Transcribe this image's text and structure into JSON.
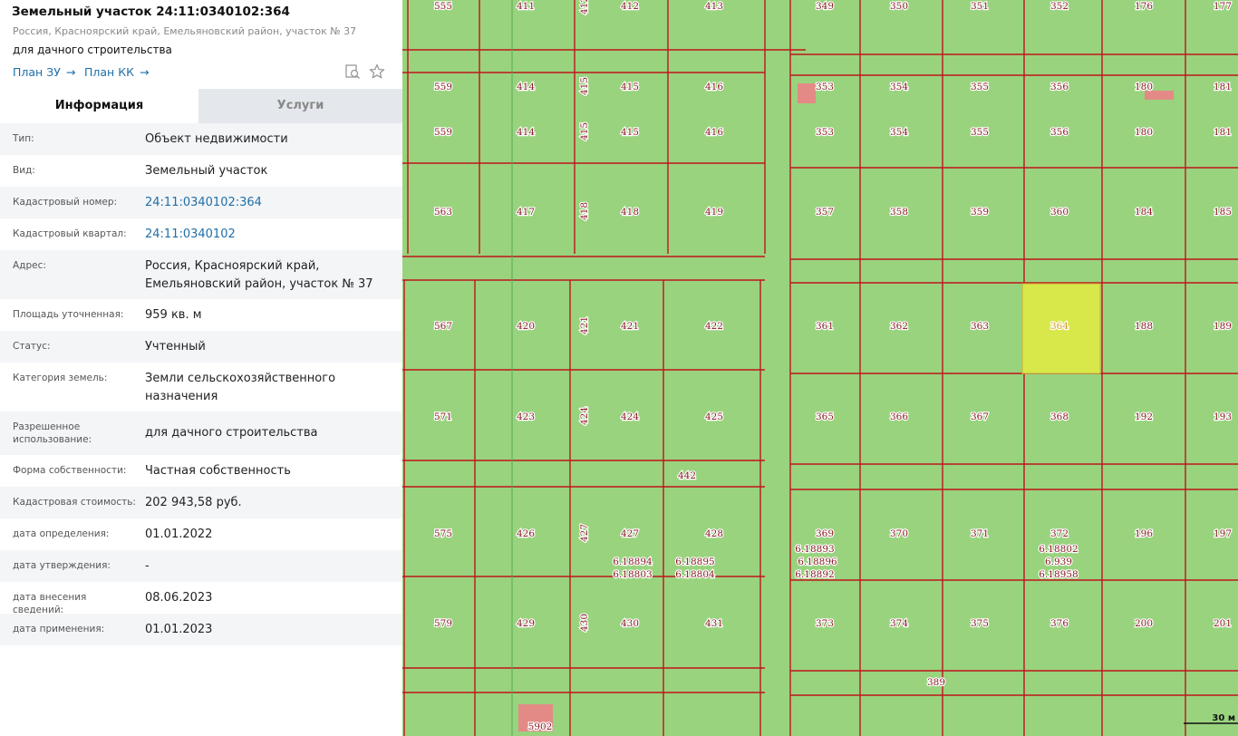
{
  "header": {
    "title": "Земельный участок 24:11:0340102:364",
    "address": "Россия, Красноярский край, Емельяновский район, участок № 37",
    "purpose": "для дачного строительства",
    "links": [
      {
        "label": "План ЗУ",
        "arrow": "→"
      },
      {
        "label": "План КК",
        "arrow": "→"
      }
    ],
    "tools": [
      "search-doc-icon",
      "star-icon"
    ]
  },
  "tabs": {
    "info": "Информация",
    "services": "Услуги"
  },
  "rows": [
    {
      "label": "Тип:",
      "value": "Объект недвижимости"
    },
    {
      "label": "Вид:",
      "value": "Земельный участок"
    },
    {
      "label": "Кадастровый номер:",
      "value": "24:11:0340102:364",
      "link": true
    },
    {
      "label": "Кадастровый квартал:",
      "value": "24:11:0340102",
      "link": true
    },
    {
      "label": "Адрес:",
      "value": "Россия, Красноярский край, Емельяновский район, участок № 37"
    },
    {
      "label": "Площадь уточненная:",
      "value": "959 кв. м"
    },
    {
      "label": "Статус:",
      "value": "Учтенный"
    },
    {
      "label": "Категория земель:",
      "value": "Земли сельскохозяйственного назначения"
    },
    {
      "label": "Разрешенное использование:",
      "value": "для дачного строительства"
    },
    {
      "label": "Форма собственности:",
      "value": "Частная собственность"
    },
    {
      "label": "Кадастровая стоимость:",
      "value": "202 943,58 руб."
    },
    {
      "label": "дата определения:",
      "value": "01.01.2022"
    },
    {
      "label": "дата утверждения:",
      "value": "-"
    },
    {
      "label": "дата внесения сведений:",
      "value": "08.06.2023"
    },
    {
      "label": "дата применения:",
      "value": "01.01.2023"
    }
  ],
  "map": {
    "highlight_color": "#d8e84a",
    "parcel_fill": "#99d37e",
    "boundary_color": "#c0141c",
    "label_color": "#8a1a24",
    "building_color": "#e48a86",
    "scale_label": "30 м",
    "labels": [
      "555",
      "411",
      "412",
      "412",
      "413",
      "349",
      "350",
      "351",
      "352",
      "176",
      "177",
      "559",
      "414",
      "415",
      "415",
      "416",
      "353",
      "354",
      "355",
      "356",
      "180",
      "181",
      "559",
      "414",
      "415",
      "415",
      "416",
      "353",
      "354",
      "355",
      "356",
      "180",
      "181",
      "563",
      "417",
      "418",
      "418",
      "419",
      "357",
      "358",
      "359",
      "360",
      "184",
      "185",
      "567",
      "420",
      "421",
      "421",
      "422",
      "361",
      "362",
      "363",
      "364",
      "188",
      "189",
      "571",
      "423",
      "424",
      "424",
      "425",
      "365",
      "366",
      "367",
      "368",
      "192",
      "193",
      "442",
      "575",
      "426",
      "427",
      "427",
      "428",
      "369",
      "370",
      "371",
      "372",
      "196",
      "197",
      "6.18894",
      "6.18803",
      "6.18895",
      "6.18804",
      "6.18893",
      "6.18896",
      "6.18892",
      "6.18802",
      "6.939",
      "6.18958",
      "579",
      "429",
      "430",
      "430",
      "431",
      "373",
      "374",
      "375",
      "376",
      "200",
      "201",
      "389",
      "5902"
    ]
  }
}
